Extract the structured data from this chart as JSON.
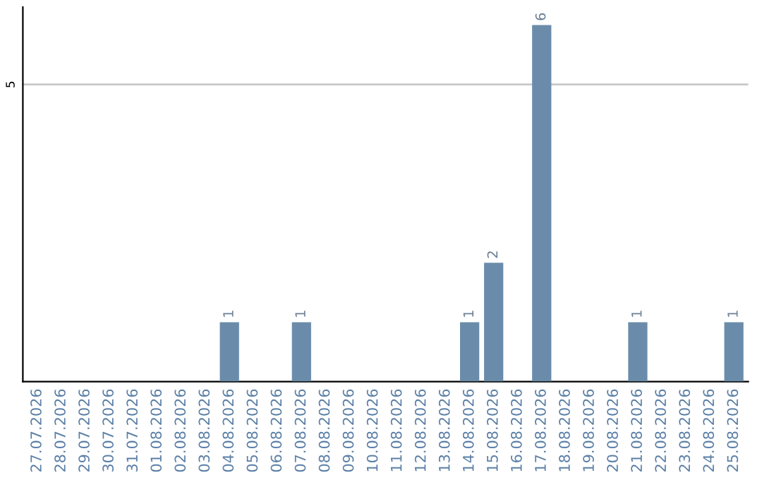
{
  "chart_data": {
    "type": "bar",
    "categories": [
      "27.07.2026",
      "28.07.2026",
      "29.07.2026",
      "30.07.2026",
      "31.07.2026",
      "01.08.2026",
      "02.08.2026",
      "03.08.2026",
      "04.08.2026",
      "05.08.2026",
      "06.08.2026",
      "07.08.2026",
      "08.08.2026",
      "09.08.2026",
      "10.08.2026",
      "11.08.2026",
      "12.08.2026",
      "13.08.2026",
      "14.08.2026",
      "15.08.2026",
      "16.08.2026",
      "17.08.2026",
      "18.08.2026",
      "19.08.2026",
      "20.08.2026",
      "21.08.2026",
      "22.08.2026",
      "23.08.2026",
      "24.08.2026",
      "25.08.2026"
    ],
    "values": [
      0,
      0,
      0,
      0,
      0,
      0,
      0,
      0,
      1,
      0,
      0,
      1,
      0,
      0,
      0,
      0,
      0,
      0,
      1,
      2,
      0,
      6,
      0,
      0,
      0,
      1,
      0,
      0,
      0,
      1
    ],
    "value_labels": [
      null,
      null,
      null,
      null,
      null,
      null,
      null,
      null,
      "1",
      null,
      null,
      "1",
      null,
      null,
      null,
      null,
      null,
      null,
      "1",
      "2",
      null,
      "6",
      null,
      null,
      null,
      "1",
      null,
      null,
      null,
      "1"
    ],
    "color": "#6a8caa",
    "ylim": [
      0,
      6.3
    ],
    "yticks": [
      5
    ],
    "grid": "y"
  }
}
